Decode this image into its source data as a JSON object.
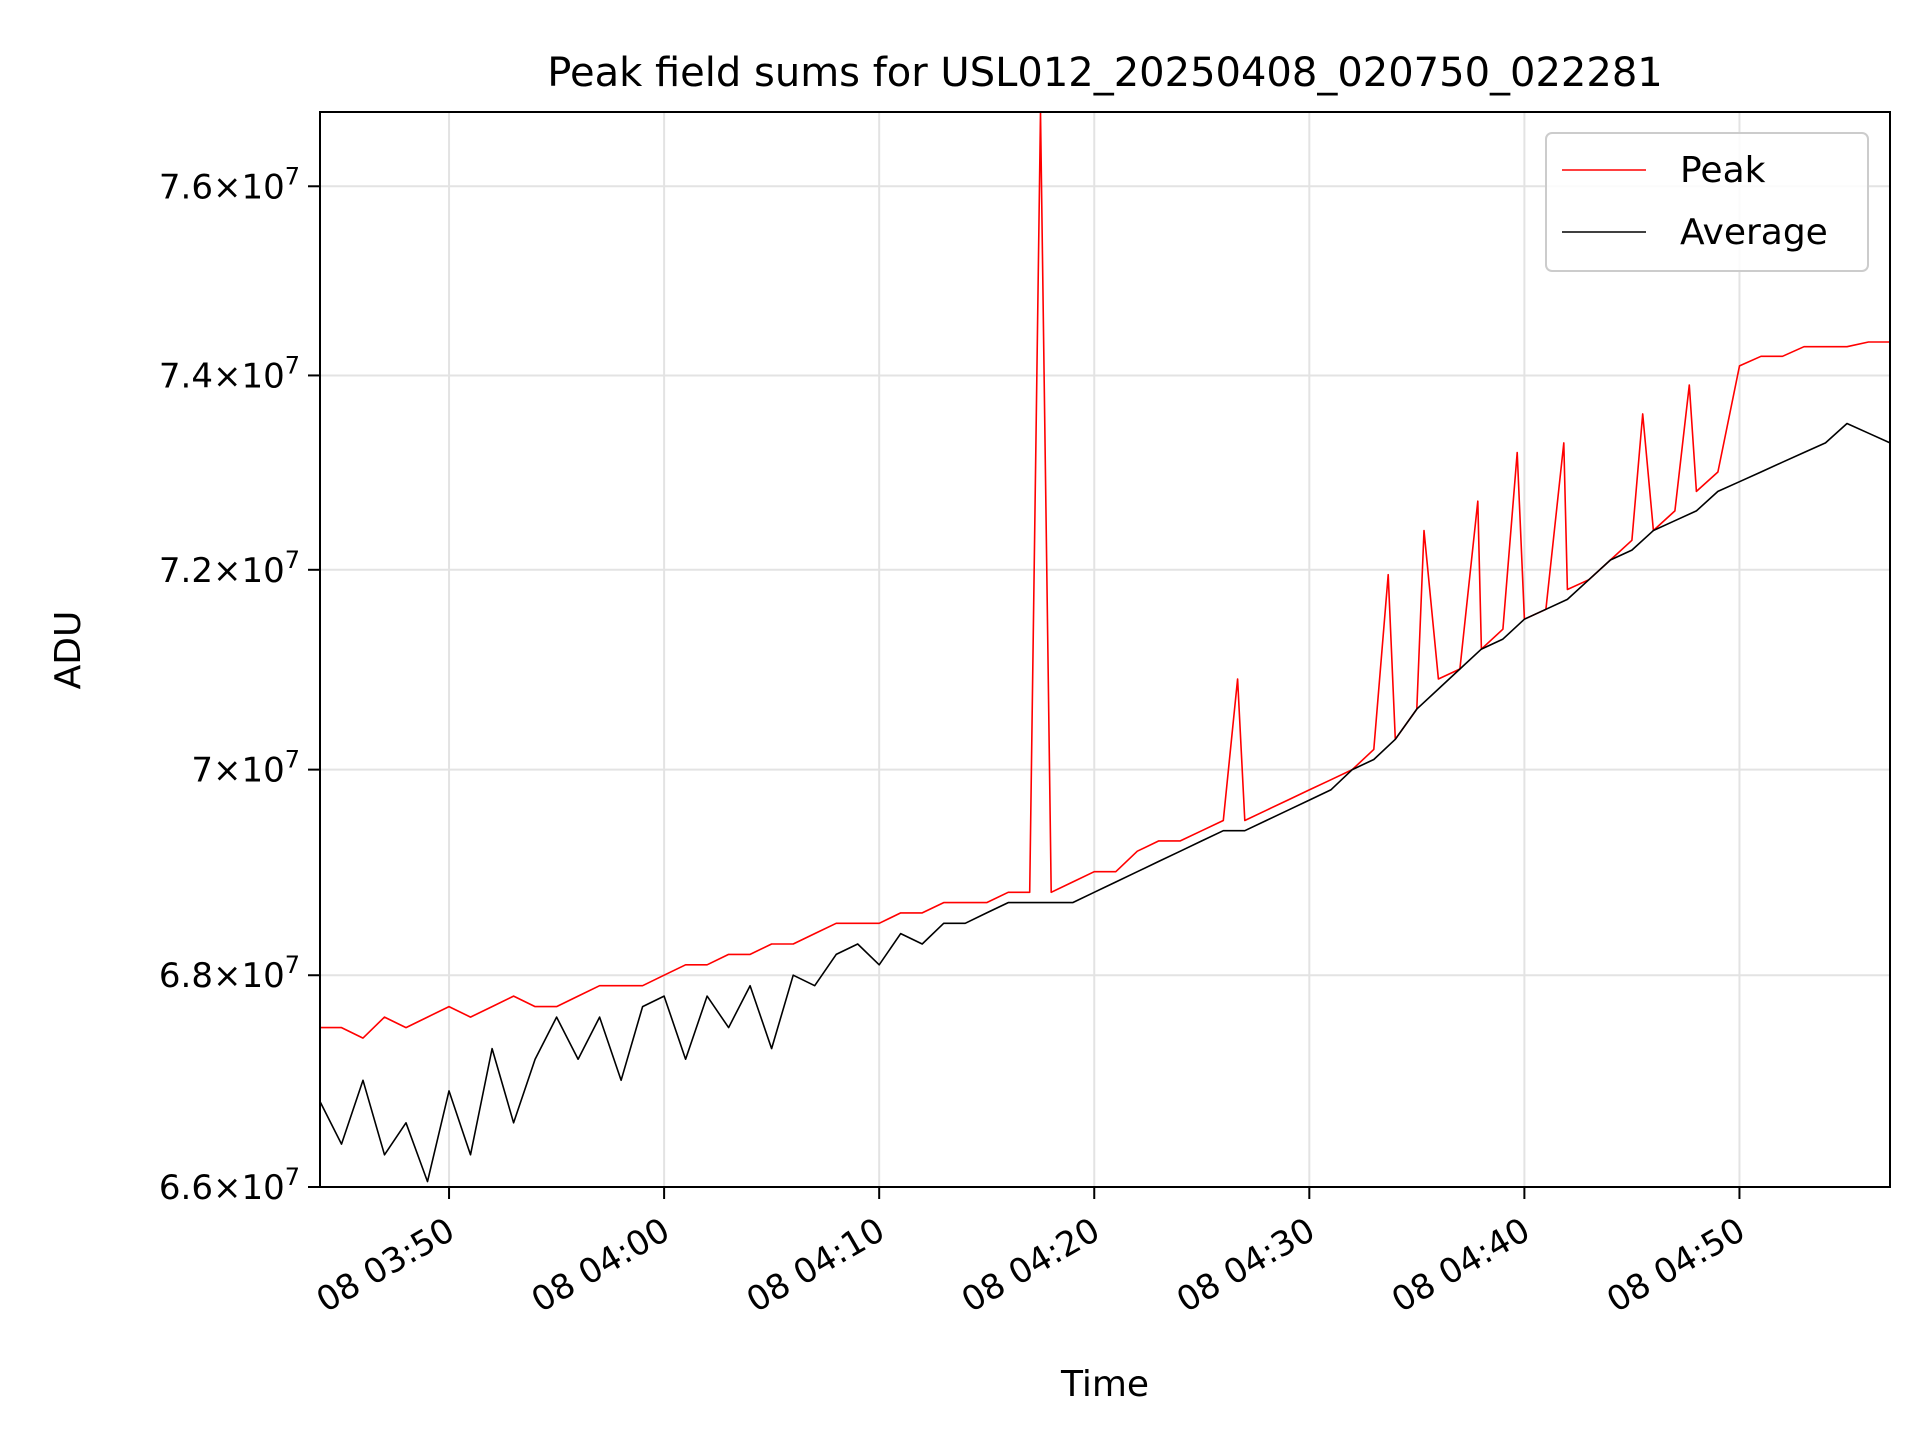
{
  "chart_data": {
    "type": "line",
    "title": "Peak field sums for USL012_20250408_020750_022281",
    "xlabel": "Time",
    "ylabel": "ADU",
    "x_ticks": [
      "08 03:50",
      "08 04:00",
      "08 04:10",
      "08 04:20",
      "08 04:30",
      "08 04:40",
      "08 04:50"
    ],
    "y_ticks": [
      {
        "value": 66000000,
        "mant": "6.6",
        "exp": "7"
      },
      {
        "value": 68000000,
        "mant": "6.8",
        "exp": "7"
      },
      {
        "value": 70000000,
        "mant": "7",
        "exp": "7"
      },
      {
        "value": 72000000,
        "mant": "7.2",
        "exp": "7"
      },
      {
        "value": 74000000,
        "mant": "7.4",
        "exp": "7"
      },
      {
        "value": 76000000,
        "mant": "7.6",
        "exp": "7"
      }
    ],
    "x_range": [
      "08 03:44",
      "08 04:57"
    ],
    "ylim": [
      66000000,
      76800000
    ],
    "y_scale": "log",
    "grid": true,
    "legend_position": "top-right",
    "series": [
      {
        "name": "Peak",
        "color": "#ff0000",
        "points": [
          [
            "08 03:44",
            67500000
          ],
          [
            "08 03:45",
            67500000
          ],
          [
            "08 03:46",
            67400000
          ],
          [
            "08 03:47",
            67600000
          ],
          [
            "08 03:48",
            67500000
          ],
          [
            "08 03:49",
            67600000
          ],
          [
            "08 03:50",
            67700000
          ],
          [
            "08 03:51",
            67600000
          ],
          [
            "08 03:52",
            67700000
          ],
          [
            "08 03:53",
            67800000
          ],
          [
            "08 03:54",
            67700000
          ],
          [
            "08 03:55",
            67700000
          ],
          [
            "08 03:56",
            67800000
          ],
          [
            "08 03:57",
            67900000
          ],
          [
            "08 03:58",
            67900000
          ],
          [
            "08 03:59",
            67900000
          ],
          [
            "08 04:00",
            68000000
          ],
          [
            "08 04:01",
            68100000
          ],
          [
            "08 04:02",
            68100000
          ],
          [
            "08 04:03",
            68200000
          ],
          [
            "08 04:04",
            68200000
          ],
          [
            "08 04:05",
            68300000
          ],
          [
            "08 04:06",
            68300000
          ],
          [
            "08 04:07",
            68400000
          ],
          [
            "08 04:08",
            68500000
          ],
          [
            "08 04:09",
            68500000
          ],
          [
            "08 04:10",
            68500000
          ],
          [
            "08 04:11",
            68600000
          ],
          [
            "08 04:12",
            68600000
          ],
          [
            "08 04:13",
            68700000
          ],
          [
            "08 04:14",
            68700000
          ],
          [
            "08 04:15",
            68700000
          ],
          [
            "08 04:16",
            68800000
          ],
          [
            "08 04:17",
            68800000
          ],
          [
            "08 04:17:30",
            76800000
          ],
          [
            "08 04:18",
            68800000
          ],
          [
            "08 04:19",
            68900000
          ],
          [
            "08 04:20",
            69000000
          ],
          [
            "08 04:21",
            69000000
          ],
          [
            "08 04:22",
            69200000
          ],
          [
            "08 04:23",
            69300000
          ],
          [
            "08 04:24",
            69300000
          ],
          [
            "08 04:25",
            69400000
          ],
          [
            "08 04:26",
            69500000
          ],
          [
            "08 04:26:40",
            70900000
          ],
          [
            "08 04:27",
            69500000
          ],
          [
            "08 04:28",
            69600000
          ],
          [
            "08 04:29",
            69700000
          ],
          [
            "08 04:30",
            69800000
          ],
          [
            "08 04:31",
            69900000
          ],
          [
            "08 04:32",
            70000000
          ],
          [
            "08 04:33",
            70200000
          ],
          [
            "08 04:33:40",
            71950000
          ],
          [
            "08 04:34",
            70300000
          ],
          [
            "08 04:35",
            70600000
          ],
          [
            "08 04:35:20",
            72400000
          ],
          [
            "08 04:36",
            70900000
          ],
          [
            "08 04:37",
            71000000
          ],
          [
            "08 04:37:50",
            72700000
          ],
          [
            "08 04:38",
            71200000
          ],
          [
            "08 04:39",
            71400000
          ],
          [
            "08 04:39:40",
            73200000
          ],
          [
            "08 04:40",
            71500000
          ],
          [
            "08 04:41",
            71600000
          ],
          [
            "08 04:41:50",
            73300000
          ],
          [
            "08 04:42",
            71800000
          ],
          [
            "08 04:43",
            71900000
          ],
          [
            "08 04:44",
            72100000
          ],
          [
            "08 04:45",
            72300000
          ],
          [
            "08 04:45:30",
            73600000
          ],
          [
            "08 04:46",
            72400000
          ],
          [
            "08 04:47",
            72600000
          ],
          [
            "08 04:47:40",
            73900000
          ],
          [
            "08 04:48",
            72800000
          ],
          [
            "08 04:49",
            73000000
          ],
          [
            "08 04:50",
            74100000
          ],
          [
            "08 04:51",
            74200000
          ],
          [
            "08 04:52",
            74200000
          ],
          [
            "08 04:53",
            74300000
          ],
          [
            "08 04:54",
            74300000
          ],
          [
            "08 04:55",
            74300000
          ],
          [
            "08 04:56",
            74350000
          ],
          [
            "08 04:57",
            74350000
          ]
        ]
      },
      {
        "name": "Average",
        "color": "#000000",
        "points": [
          [
            "08 03:44",
            66800000
          ],
          [
            "08 03:45",
            66400000
          ],
          [
            "08 03:46",
            67000000
          ],
          [
            "08 03:47",
            66300000
          ],
          [
            "08 03:48",
            66600000
          ],
          [
            "08 03:49",
            66050000
          ],
          [
            "08 03:50",
            66900000
          ],
          [
            "08 03:51",
            66300000
          ],
          [
            "08 03:52",
            67300000
          ],
          [
            "08 03:53",
            66600000
          ],
          [
            "08 03:54",
            67200000
          ],
          [
            "08 03:55",
            67600000
          ],
          [
            "08 03:56",
            67200000
          ],
          [
            "08 03:57",
            67600000
          ],
          [
            "08 03:58",
            67000000
          ],
          [
            "08 03:59",
            67700000
          ],
          [
            "08 04:00",
            67800000
          ],
          [
            "08 04:01",
            67200000
          ],
          [
            "08 04:02",
            67800000
          ],
          [
            "08 04:03",
            67500000
          ],
          [
            "08 04:04",
            67900000
          ],
          [
            "08 04:05",
            67300000
          ],
          [
            "08 04:06",
            68000000
          ],
          [
            "08 04:07",
            67900000
          ],
          [
            "08 04:08",
            68200000
          ],
          [
            "08 04:09",
            68300000
          ],
          [
            "08 04:10",
            68100000
          ],
          [
            "08 04:11",
            68400000
          ],
          [
            "08 04:12",
            68300000
          ],
          [
            "08 04:13",
            68500000
          ],
          [
            "08 04:14",
            68500000
          ],
          [
            "08 04:15",
            68600000
          ],
          [
            "08 04:16",
            68700000
          ],
          [
            "08 04:17",
            68700000
          ],
          [
            "08 04:18",
            68700000
          ],
          [
            "08 04:19",
            68700000
          ],
          [
            "08 04:20",
            68800000
          ],
          [
            "08 04:21",
            68900000
          ],
          [
            "08 04:22",
            69000000
          ],
          [
            "08 04:23",
            69100000
          ],
          [
            "08 04:24",
            69200000
          ],
          [
            "08 04:25",
            69300000
          ],
          [
            "08 04:26",
            69400000
          ],
          [
            "08 04:27",
            69400000
          ],
          [
            "08 04:28",
            69500000
          ],
          [
            "08 04:29",
            69600000
          ],
          [
            "08 04:30",
            69700000
          ],
          [
            "08 04:31",
            69800000
          ],
          [
            "08 04:32",
            70000000
          ],
          [
            "08 04:33",
            70100000
          ],
          [
            "08 04:34",
            70300000
          ],
          [
            "08 04:35",
            70600000
          ],
          [
            "08 04:36",
            70800000
          ],
          [
            "08 04:37",
            71000000
          ],
          [
            "08 04:38",
            71200000
          ],
          [
            "08 04:39",
            71300000
          ],
          [
            "08 04:40",
            71500000
          ],
          [
            "08 04:41",
            71600000
          ],
          [
            "08 04:42",
            71700000
          ],
          [
            "08 04:43",
            71900000
          ],
          [
            "08 04:44",
            72100000
          ],
          [
            "08 04:45",
            72200000
          ],
          [
            "08 04:46",
            72400000
          ],
          [
            "08 04:47",
            72500000
          ],
          [
            "08 04:48",
            72600000
          ],
          [
            "08 04:49",
            72800000
          ],
          [
            "08 04:50",
            72900000
          ],
          [
            "08 04:51",
            73000000
          ],
          [
            "08 04:52",
            73100000
          ],
          [
            "08 04:53",
            73200000
          ],
          [
            "08 04:54",
            73300000
          ],
          [
            "08 04:55",
            73500000
          ],
          [
            "08 04:56",
            73400000
          ],
          [
            "08 04:57",
            73300000
          ]
        ]
      }
    ]
  }
}
